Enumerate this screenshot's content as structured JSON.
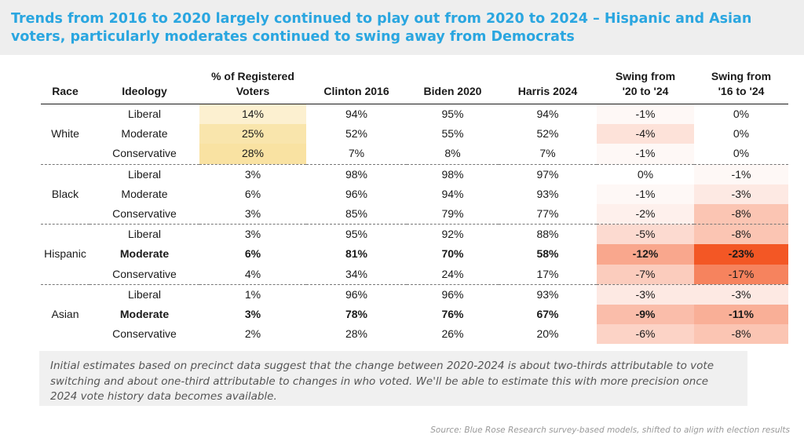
{
  "title": "Trends from 2016 to 2020 largely continued to play out from 2020 to 2024 – Hispanic and Asian voters, particularly moderates continued to swing away from Democrats",
  "note": "Initial estimates based on precinct data suggest that the change between 2020-2024 is about two-thirds attributable to vote switching and about one-third attributable to changes in who voted. We'll be able to estimate this with more precision once 2024 vote history data becomes available.",
  "source": "Source: Blue Rose Research survey-based models, shifted to align with election results",
  "colors": {
    "title": "#2aa6e0",
    "share_scale_high": "#f6d57a",
    "swing_scale_high": "#f24e1a"
  },
  "chart_data": {
    "type": "table",
    "headers": [
      "Race",
      "Ideology",
      "% of Registered Voters",
      "Clinton 2016",
      "Biden 2020",
      "Harris 2024",
      "Swing from '20 to '24",
      "Swing from '16 to '24"
    ],
    "groups": [
      {
        "race": "White",
        "rows": [
          {
            "ideology": "Liberal",
            "share": "14%",
            "clinton": "94%",
            "biden": "95%",
            "harris": "94%",
            "swing_20_24": "-1%",
            "swing_16_24": "0%",
            "bold": false
          },
          {
            "ideology": "Moderate",
            "share": "25%",
            "clinton": "52%",
            "biden": "55%",
            "harris": "52%",
            "swing_20_24": "-4%",
            "swing_16_24": "0%",
            "bold": false
          },
          {
            "ideology": "Conservative",
            "share": "28%",
            "clinton": "7%",
            "biden": "8%",
            "harris": "7%",
            "swing_20_24": "-1%",
            "swing_16_24": "0%",
            "bold": false
          }
        ]
      },
      {
        "race": "Black",
        "rows": [
          {
            "ideology": "Liberal",
            "share": "3%",
            "clinton": "98%",
            "biden": "98%",
            "harris": "97%",
            "swing_20_24": "0%",
            "swing_16_24": "-1%",
            "bold": false
          },
          {
            "ideology": "Moderate",
            "share": "6%",
            "clinton": "96%",
            "biden": "94%",
            "harris": "93%",
            "swing_20_24": "-1%",
            "swing_16_24": "-3%",
            "bold": false
          },
          {
            "ideology": "Conservative",
            "share": "3%",
            "clinton": "85%",
            "biden": "79%",
            "harris": "77%",
            "swing_20_24": "-2%",
            "swing_16_24": "-8%",
            "bold": false
          }
        ]
      },
      {
        "race": "Hispanic",
        "rows": [
          {
            "ideology": "Liberal",
            "share": "3%",
            "clinton": "95%",
            "biden": "92%",
            "harris": "88%",
            "swing_20_24": "-5%",
            "swing_16_24": "-8%",
            "bold": false
          },
          {
            "ideology": "Moderate",
            "share": "6%",
            "clinton": "81%",
            "biden": "70%",
            "harris": "58%",
            "swing_20_24": "-12%",
            "swing_16_24": "-23%",
            "bold": true
          },
          {
            "ideology": "Conservative",
            "share": "4%",
            "clinton": "34%",
            "biden": "24%",
            "harris": "17%",
            "swing_20_24": "-7%",
            "swing_16_24": "-17%",
            "bold": false
          }
        ]
      },
      {
        "race": "Asian",
        "rows": [
          {
            "ideology": "Liberal",
            "share": "1%",
            "clinton": "96%",
            "biden": "96%",
            "harris": "93%",
            "swing_20_24": "-3%",
            "swing_16_24": "-3%",
            "bold": false
          },
          {
            "ideology": "Moderate",
            "share": "3%",
            "clinton": "78%",
            "biden": "76%",
            "harris": "67%",
            "swing_20_24": "-9%",
            "swing_16_24": "-11%",
            "bold": true
          },
          {
            "ideology": "Conservative",
            "share": "2%",
            "clinton": "28%",
            "biden": "26%",
            "harris": "20%",
            "swing_20_24": "-6%",
            "swing_16_24": "-8%",
            "bold": false
          }
        ]
      }
    ]
  }
}
